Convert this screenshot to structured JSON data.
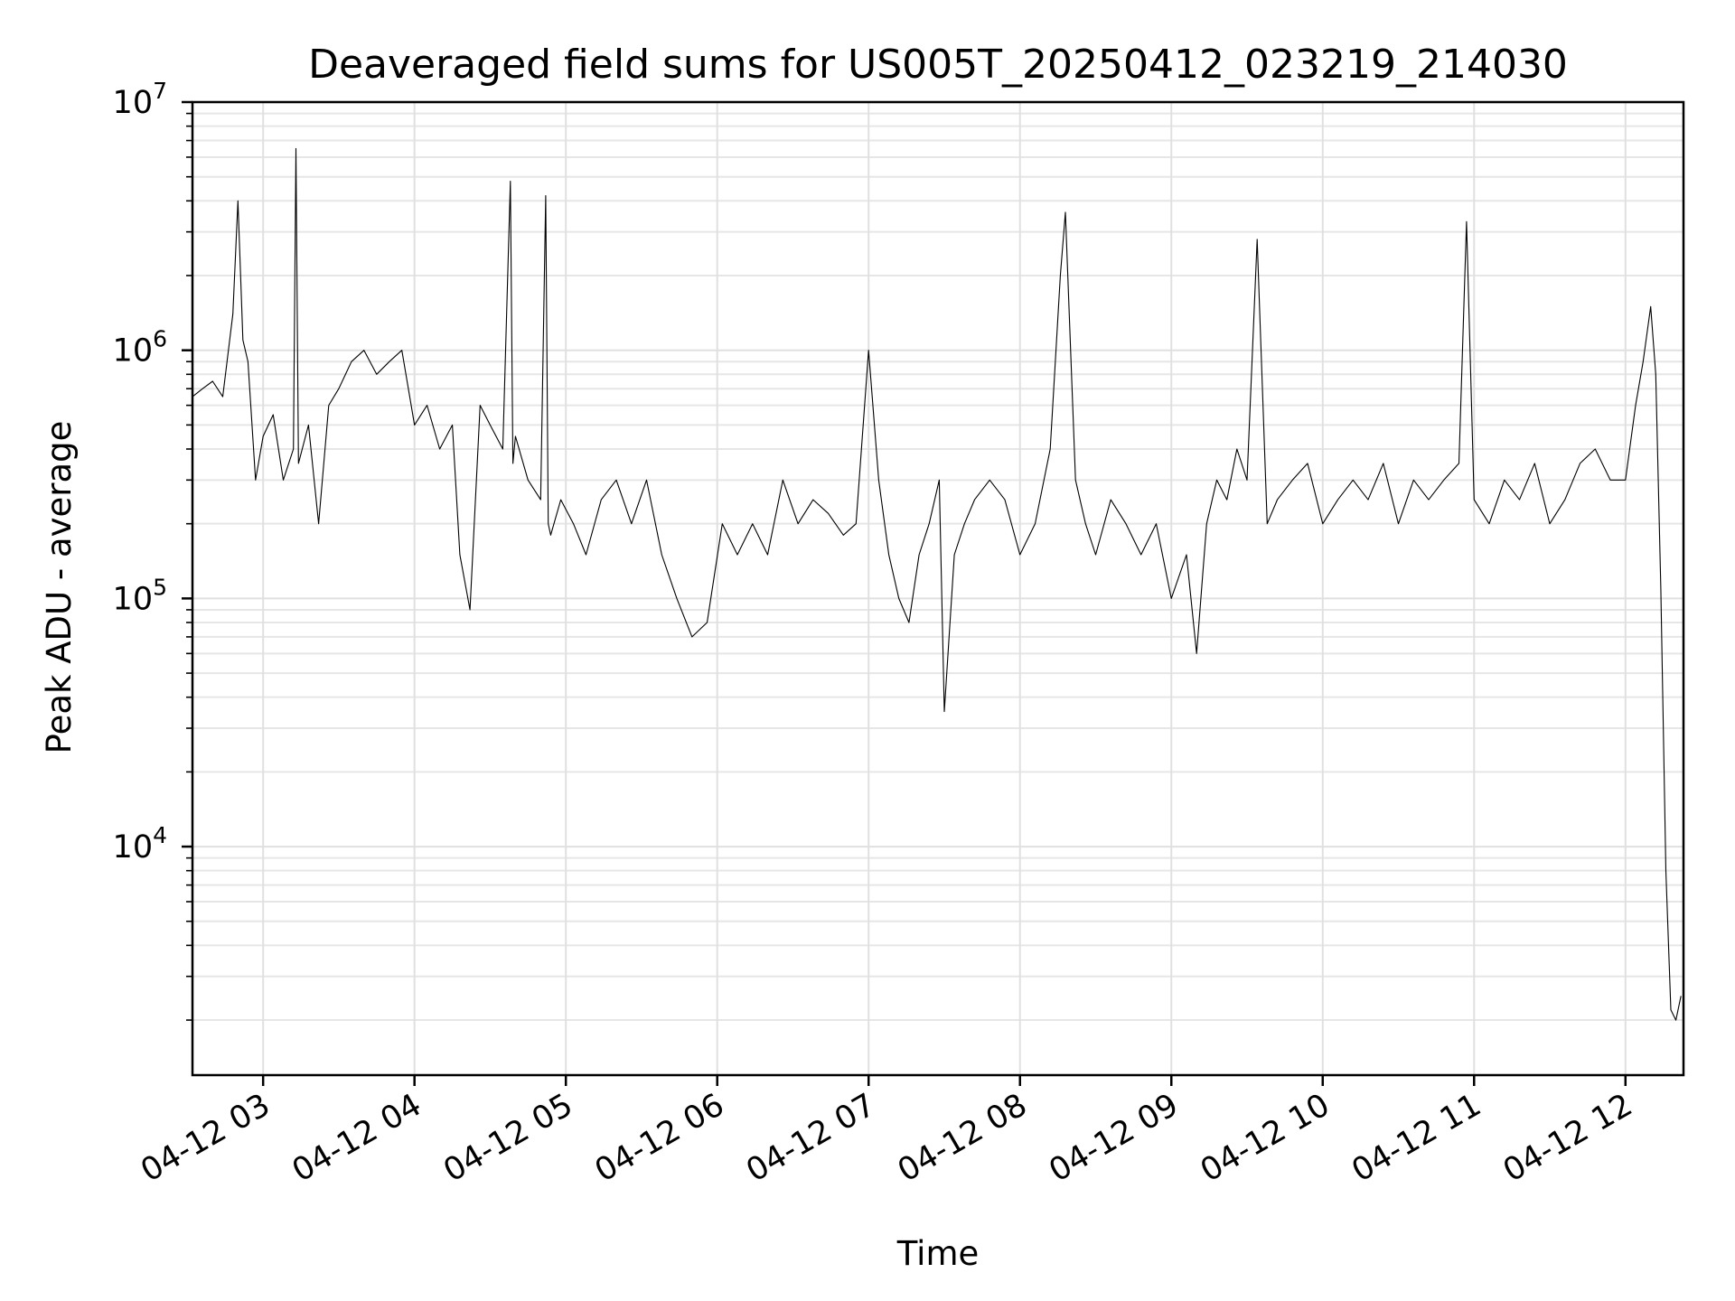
{
  "chart_data": {
    "type": "line",
    "title": "Deaveraged field sums for US005T_20250412_023219_214030",
    "xlabel": "Time",
    "ylabel": "Peak ADU - average",
    "yscale": "log",
    "ylim": [
      1200,
      10000000
    ],
    "xlim": [
      "2025-04-12T02:32",
      "2025-04-12T12:23"
    ],
    "grid": true,
    "x_ticks": [
      {
        "value": "2025-04-12T03:00",
        "label": "04-12 03"
      },
      {
        "value": "2025-04-12T04:00",
        "label": "04-12 04"
      },
      {
        "value": "2025-04-12T05:00",
        "label": "04-12 05"
      },
      {
        "value": "2025-04-12T06:00",
        "label": "04-12 06"
      },
      {
        "value": "2025-04-12T07:00",
        "label": "04-12 07"
      },
      {
        "value": "2025-04-12T08:00",
        "label": "04-12 08"
      },
      {
        "value": "2025-04-12T09:00",
        "label": "04-12 09"
      },
      {
        "value": "2025-04-12T10:00",
        "label": "04-12 10"
      },
      {
        "value": "2025-04-12T11:00",
        "label": "04-12 11"
      },
      {
        "value": "2025-04-12T12:00",
        "label": "04-12 12"
      }
    ],
    "y_ticks": [
      {
        "value": 10000,
        "base": "10",
        "exp": "4"
      },
      {
        "value": 100000,
        "base": "10",
        "exp": "5"
      },
      {
        "value": 1000000,
        "base": "10",
        "exp": "6"
      },
      {
        "value": 10000000,
        "base": "10",
        "exp": "7"
      }
    ],
    "series": [
      {
        "color": "#000000",
        "x": [
          "2025-04-12T02:32",
          "2025-04-12T02:36",
          "2025-04-12T02:40",
          "2025-04-12T02:44",
          "2025-04-12T02:48",
          "2025-04-12T02:50",
          "2025-04-12T02:52",
          "2025-04-12T02:54",
          "2025-04-12T02:57",
          "2025-04-12T03:00",
          "2025-04-12T03:04",
          "2025-04-12T03:08",
          "2025-04-12T03:12",
          "2025-04-12T03:13",
          "2025-04-12T03:14",
          "2025-04-12T03:18",
          "2025-04-12T03:22",
          "2025-04-12T03:26",
          "2025-04-12T03:30",
          "2025-04-12T03:35",
          "2025-04-12T03:40",
          "2025-04-12T03:45",
          "2025-04-12T03:50",
          "2025-04-12T03:55",
          "2025-04-12T04:00",
          "2025-04-12T04:05",
          "2025-04-12T04:10",
          "2025-04-12T04:15",
          "2025-04-12T04:18",
          "2025-04-12T04:22",
          "2025-04-12T04:26",
          "2025-04-12T04:30",
          "2025-04-12T04:35",
          "2025-04-12T04:38",
          "2025-04-12T04:39",
          "2025-04-12T04:40",
          "2025-04-12T04:45",
          "2025-04-12T04:50",
          "2025-04-12T04:52",
          "2025-04-12T04:53",
          "2025-04-12T04:54",
          "2025-04-12T04:58",
          "2025-04-12T05:03",
          "2025-04-12T05:08",
          "2025-04-12T05:14",
          "2025-04-12T05:20",
          "2025-04-12T05:26",
          "2025-04-12T05:32",
          "2025-04-12T05:38",
          "2025-04-12T05:44",
          "2025-04-12T05:50",
          "2025-04-12T05:56",
          "2025-04-12T06:02",
          "2025-04-12T06:08",
          "2025-04-12T06:14",
          "2025-04-12T06:20",
          "2025-04-12T06:26",
          "2025-04-12T06:32",
          "2025-04-12T06:38",
          "2025-04-12T06:44",
          "2025-04-12T06:50",
          "2025-04-12T06:55",
          "2025-04-12T07:00",
          "2025-04-12T07:04",
          "2025-04-12T07:08",
          "2025-04-12T07:12",
          "2025-04-12T07:16",
          "2025-04-12T07:20",
          "2025-04-12T07:24",
          "2025-04-12T07:28",
          "2025-04-12T07:30",
          "2025-04-12T07:34",
          "2025-04-12T07:38",
          "2025-04-12T07:42",
          "2025-04-12T07:48",
          "2025-04-12T07:54",
          "2025-04-12T08:00",
          "2025-04-12T08:06",
          "2025-04-12T08:12",
          "2025-04-12T08:16",
          "2025-04-12T08:18",
          "2025-04-12T08:22",
          "2025-04-12T08:26",
          "2025-04-12T08:30",
          "2025-04-12T08:36",
          "2025-04-12T08:42",
          "2025-04-12T08:48",
          "2025-04-12T08:54",
          "2025-04-12T09:00",
          "2025-04-12T09:06",
          "2025-04-12T09:10",
          "2025-04-12T09:14",
          "2025-04-12T09:18",
          "2025-04-12T09:22",
          "2025-04-12T09:26",
          "2025-04-12T09:30",
          "2025-04-12T09:34",
          "2025-04-12T09:38",
          "2025-04-12T09:42",
          "2025-04-12T09:48",
          "2025-04-12T09:54",
          "2025-04-12T10:00",
          "2025-04-12T10:06",
          "2025-04-12T10:12",
          "2025-04-12T10:18",
          "2025-04-12T10:24",
          "2025-04-12T10:30",
          "2025-04-12T10:36",
          "2025-04-12T10:42",
          "2025-04-12T10:48",
          "2025-04-12T10:54",
          "2025-04-12T10:57",
          "2025-04-12T11:00",
          "2025-04-12T11:06",
          "2025-04-12T11:12",
          "2025-04-12T11:18",
          "2025-04-12T11:24",
          "2025-04-12T11:30",
          "2025-04-12T11:36",
          "2025-04-12T11:42",
          "2025-04-12T11:48",
          "2025-04-12T11:54",
          "2025-04-12T12:00",
          "2025-04-12T12:04",
          "2025-04-12T12:07",
          "2025-04-12T12:10",
          "2025-04-12T12:12",
          "2025-04-12T12:14",
          "2025-04-12T12:16",
          "2025-04-12T12:18",
          "2025-04-12T12:20",
          "2025-04-12T12:22"
        ],
        "y": [
          650000,
          700000,
          750000,
          650000,
          1400000,
          4000000,
          1100000,
          900000,
          300000,
          450000,
          550000,
          300000,
          400000,
          6500000,
          350000,
          500000,
          200000,
          600000,
          700000,
          900000,
          1000000,
          800000,
          900000,
          1000000,
          500000,
          600000,
          400000,
          500000,
          150000,
          90000,
          600000,
          500000,
          400000,
          4800000,
          350000,
          450000,
          300000,
          250000,
          4200000,
          200000,
          180000,
          250000,
          200000,
          150000,
          250000,
          300000,
          200000,
          300000,
          150000,
          100000,
          70000,
          80000,
          200000,
          150000,
          200000,
          150000,
          300000,
          200000,
          250000,
          220000,
          180000,
          200000,
          1000000,
          300000,
          150000,
          100000,
          80000,
          150000,
          200000,
          300000,
          35000,
          150000,
          200000,
          250000,
          300000,
          250000,
          150000,
          200000,
          400000,
          2000000,
          3600000,
          300000,
          200000,
          150000,
          250000,
          200000,
          150000,
          200000,
          100000,
          150000,
          60000,
          200000,
          300000,
          250000,
          400000,
          300000,
          2800000,
          200000,
          250000,
          300000,
          350000,
          200000,
          250000,
          300000,
          250000,
          350000,
          200000,
          300000,
          250000,
          300000,
          350000,
          3300000,
          250000,
          200000,
          300000,
          250000,
          350000,
          200000,
          250000,
          350000,
          400000,
          300000,
          300000,
          600000,
          900000,
          1500000,
          800000,
          110000,
          8000,
          2200,
          2000,
          2500
        ]
      }
    ]
  }
}
